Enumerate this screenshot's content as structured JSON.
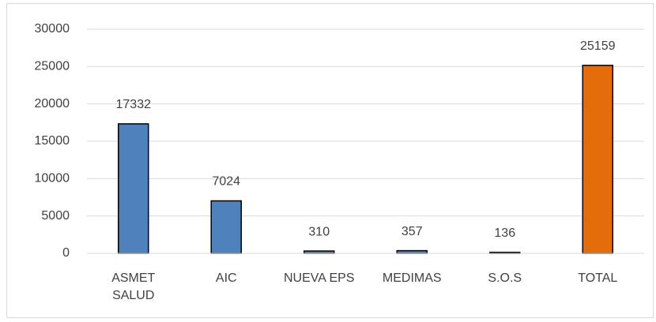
{
  "chart_data": {
    "type": "bar",
    "categories": [
      "ASMET SALUD",
      "AIC",
      "NUEVA EPS",
      "MEDIMAS",
      "S.O.S",
      "TOTAL"
    ],
    "values": [
      17332,
      7024,
      310,
      357,
      136,
      25159
    ],
    "colors": [
      "#4f81bd",
      "#4f81bd",
      "#4f81bd",
      "#4f81bd",
      "#4f81bd",
      "#e46c0a"
    ],
    "ylim": [
      0,
      30000
    ],
    "yticks": [
      0,
      5000,
      10000,
      15000,
      20000,
      25000,
      30000
    ],
    "grid": true
  }
}
